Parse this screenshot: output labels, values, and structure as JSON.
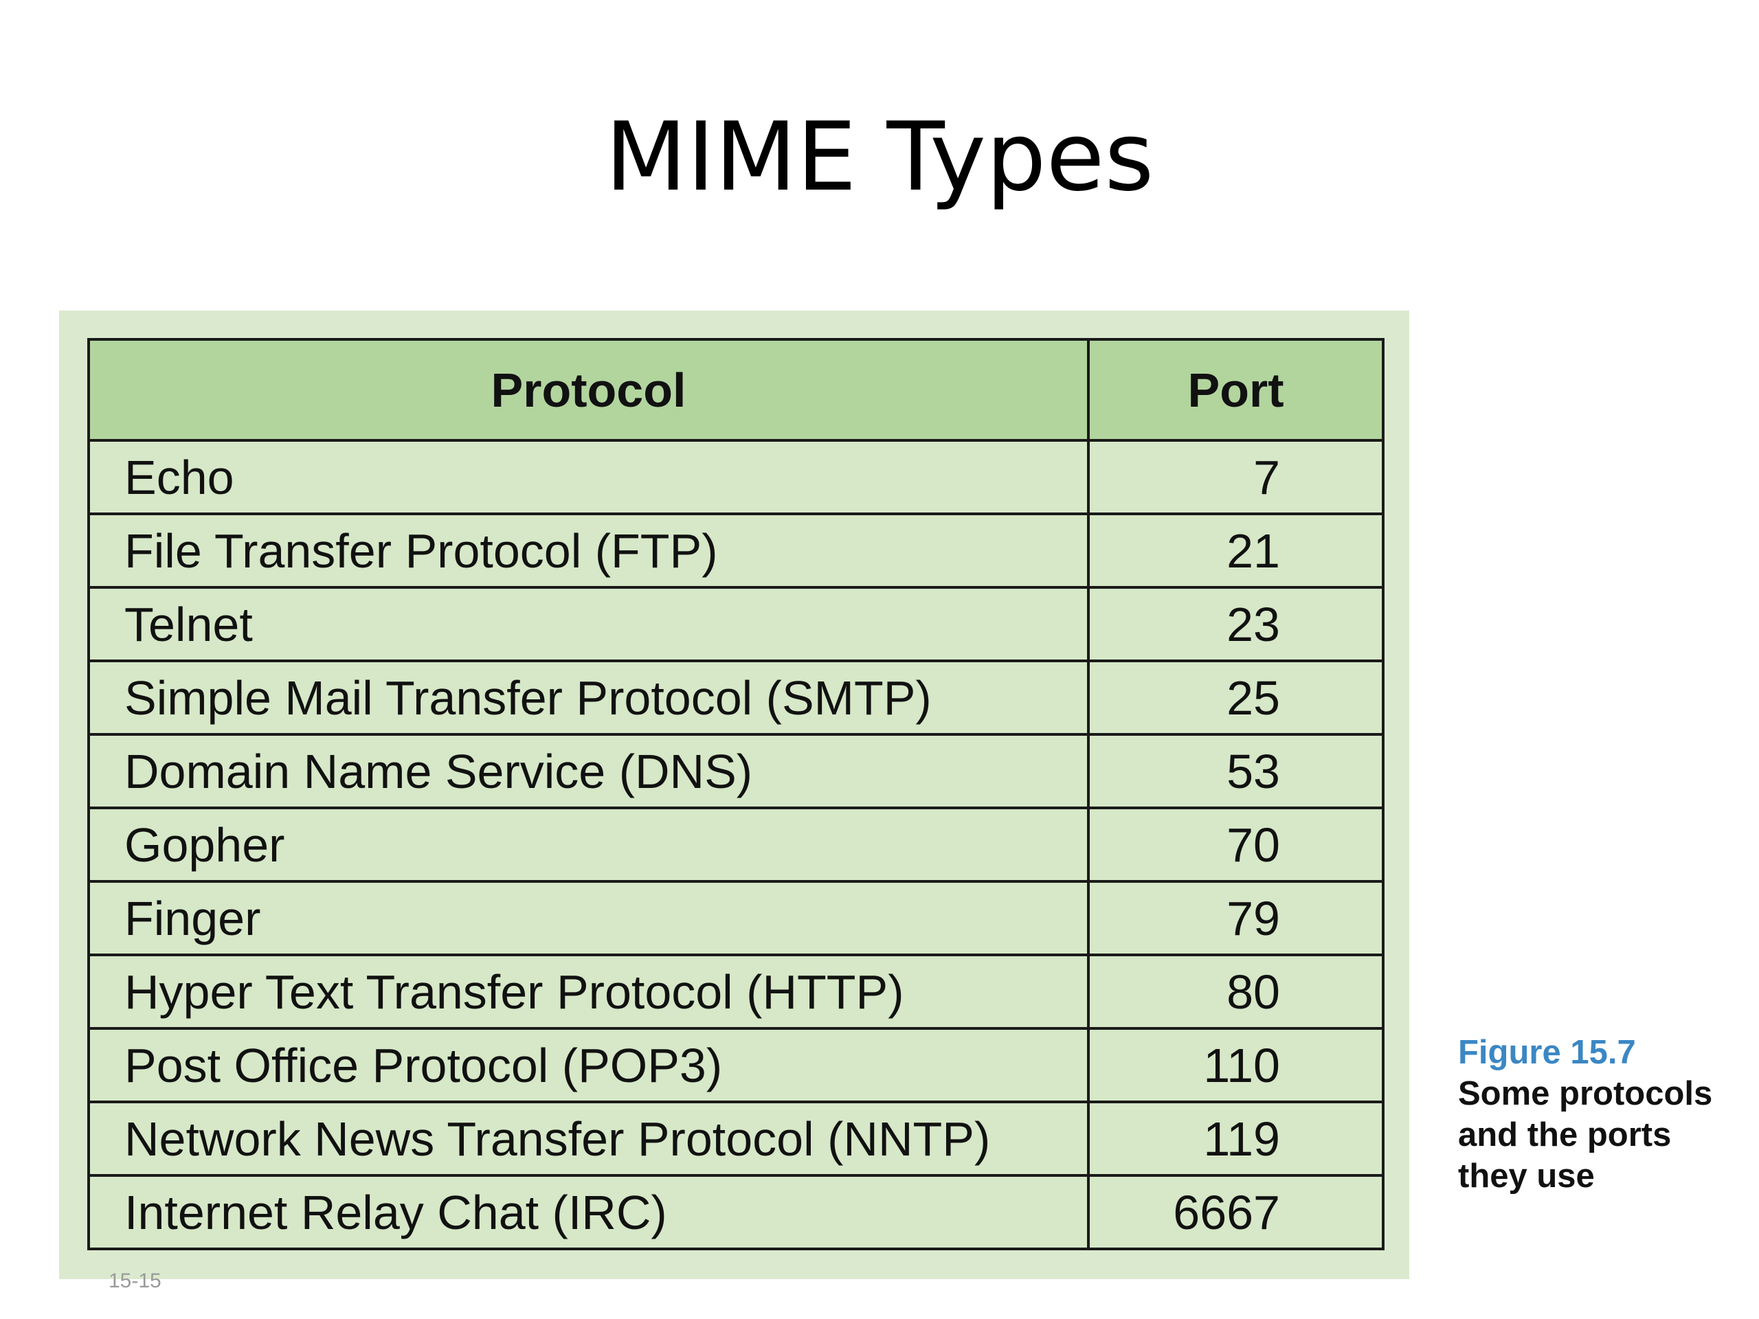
{
  "slide": {
    "title": "MIME Types",
    "footer": "15-15"
  },
  "table": {
    "headers": {
      "protocol": "Protocol",
      "port": "Port"
    },
    "rows": [
      {
        "protocol": "Echo",
        "port": "7"
      },
      {
        "protocol": "File Transfer Protocol (FTP)",
        "port": "21"
      },
      {
        "protocol": "Telnet",
        "port": "23"
      },
      {
        "protocol": "Simple Mail Transfer Protocol (SMTP)",
        "port": "25"
      },
      {
        "protocol": "Domain Name Service (DNS)",
        "port": "53"
      },
      {
        "protocol": "Gopher",
        "port": "70"
      },
      {
        "protocol": "Finger",
        "port": "79"
      },
      {
        "protocol": "Hyper Text Transfer Protocol (HTTP)",
        "port": "80"
      },
      {
        "protocol": "Post Office Protocol (POP3)",
        "port": "110"
      },
      {
        "protocol": "Network News Transfer Protocol (NNTP)",
        "port": "119"
      },
      {
        "protocol": "Internet Relay Chat (IRC)",
        "port": "6667"
      }
    ]
  },
  "caption": {
    "label": "Figure 15.7",
    "text": "Some protocols and the ports they use"
  },
  "colors": {
    "panel": "#dbeacf",
    "header_fill": "#b2d59e",
    "row_fill": "#d6e8c7",
    "caption_label": "#3b87c4"
  }
}
